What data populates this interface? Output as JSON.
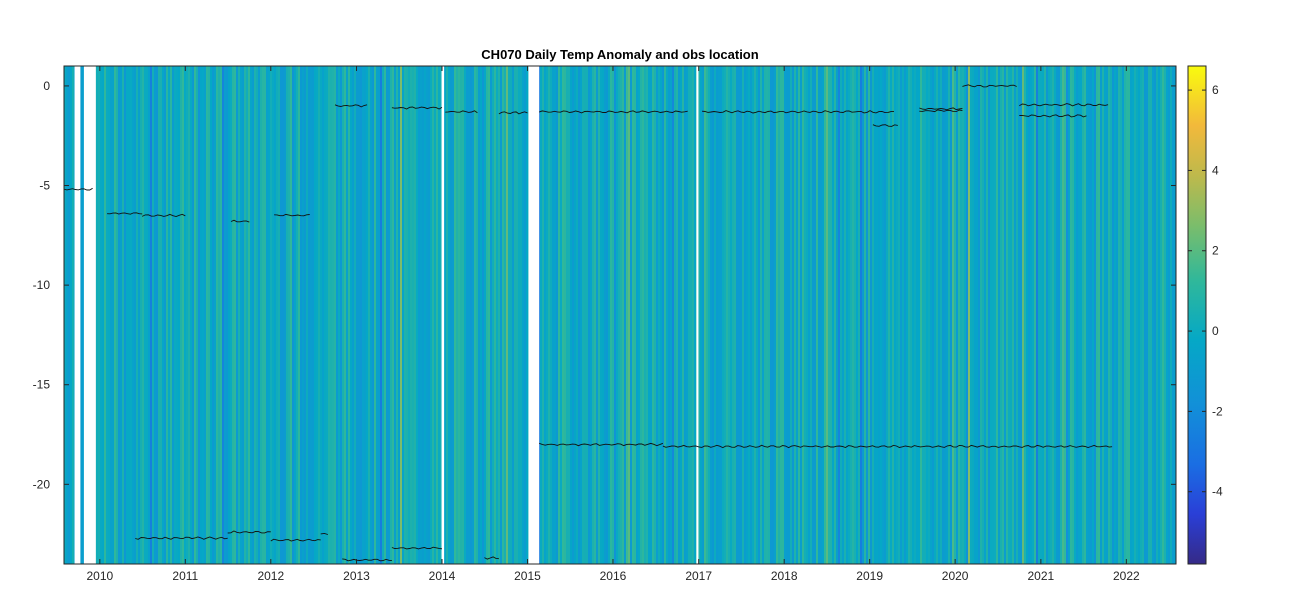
{
  "chart_data": {
    "type": "heatmap",
    "title": "CH070 Daily Temp Anomaly and obs location",
    "xlabel": "",
    "ylabel": "",
    "x_range": [
      "2009-08-01",
      "2022-08-01"
    ],
    "x_ticks": [
      "2010",
      "2011",
      "2012",
      "2013",
      "2014",
      "2015",
      "2016",
      "2017",
      "2018",
      "2019",
      "2020",
      "2021",
      "2022"
    ],
    "y_range": [
      -24,
      1
    ],
    "y_ticks": [
      0,
      -5,
      -10,
      -15,
      -20
    ],
    "y_tick_labels": [
      "0",
      "-5",
      "-10",
      "-15",
      "-20"
    ],
    "colorbar": {
      "range": [
        -5.8,
        6.6
      ],
      "ticks": [
        6,
        4,
        2,
        0,
        -2,
        -4
      ],
      "tick_labels": [
        "6",
        "4",
        "2",
        "0",
        "-2",
        "-4"
      ],
      "colormap": "parula"
    },
    "data_gaps": [
      {
        "start": "2009-09-15",
        "end": "2009-10-10"
      },
      {
        "start": "2009-10-25",
        "end": "2009-12-15"
      },
      {
        "start": "2013-12-30",
        "end": "2014-01-10"
      },
      {
        "start": "2015-01-05",
        "end": "2015-02-20"
      },
      {
        "start": "2016-12-22",
        "end": "2016-12-31"
      }
    ],
    "series": [
      {
        "segments": [
          {
            "start": "2009-08-01",
            "end": "2009-12-01",
            "depth": -5.2
          },
          {
            "start": "2010-02-01",
            "end": "2010-07-01",
            "depth": -6.4
          },
          {
            "start": "2010-07-01",
            "end": "2011-01-01",
            "depth": -6.5
          },
          {
            "start": "2011-07-15",
            "end": "2011-10-01",
            "depth": -6.8
          },
          {
            "start": "2012-01-15",
            "end": "2012-06-15",
            "depth": -6.5
          },
          {
            "start": "2012-10-01",
            "end": "2013-02-15",
            "depth": -1.0
          },
          {
            "start": "2013-06-01",
            "end": "2014-01-01",
            "depth": -1.1
          },
          {
            "start": "2014-01-15",
            "end": "2014-06-01",
            "depth": -1.3
          },
          {
            "start": "2014-09-01",
            "end": "2015-01-01",
            "depth": -1.35
          },
          {
            "start": "2015-02-20",
            "end": "2016-11-15",
            "depth": -1.3
          },
          {
            "start": "2017-01-15",
            "end": "2019-04-15",
            "depth": -1.3
          },
          {
            "start": "2019-01-15",
            "end": "2019-05-01",
            "depth": -2.0
          },
          {
            "start": "2019-08-01",
            "end": "2020-02-01",
            "depth": -1.15
          },
          {
            "start": "2019-08-01",
            "end": "2020-02-01",
            "depth": -1.25
          },
          {
            "start": "2020-02-01",
            "end": "2020-09-20",
            "depth": 0.0
          },
          {
            "start": "2020-10-01",
            "end": "2021-10-15",
            "depth": -0.95
          },
          {
            "start": "2020-10-01",
            "end": "2021-07-15",
            "depth": -1.5
          },
          {
            "start": "2015-02-20",
            "end": "2016-08-01",
            "depth": -18.0
          },
          {
            "start": "2016-08-01",
            "end": "2021-11-01",
            "depth": -18.1
          },
          {
            "start": "2010-06-01",
            "end": "2011-07-01",
            "depth": -22.7
          },
          {
            "start": "2011-07-01",
            "end": "2012-01-01",
            "depth": -22.4
          },
          {
            "start": "2012-01-01",
            "end": "2012-08-01",
            "depth": -22.8
          },
          {
            "start": "2012-08-01",
            "end": "2012-09-01",
            "depth": -22.5
          },
          {
            "start": "2012-11-01",
            "end": "2013-06-01",
            "depth": -23.8
          },
          {
            "start": "2013-06-01",
            "end": "2014-01-01",
            "depth": -23.2
          },
          {
            "start": "2014-07-01",
            "end": "2014-09-01",
            "depth": -23.7
          }
        ]
      }
    ]
  }
}
